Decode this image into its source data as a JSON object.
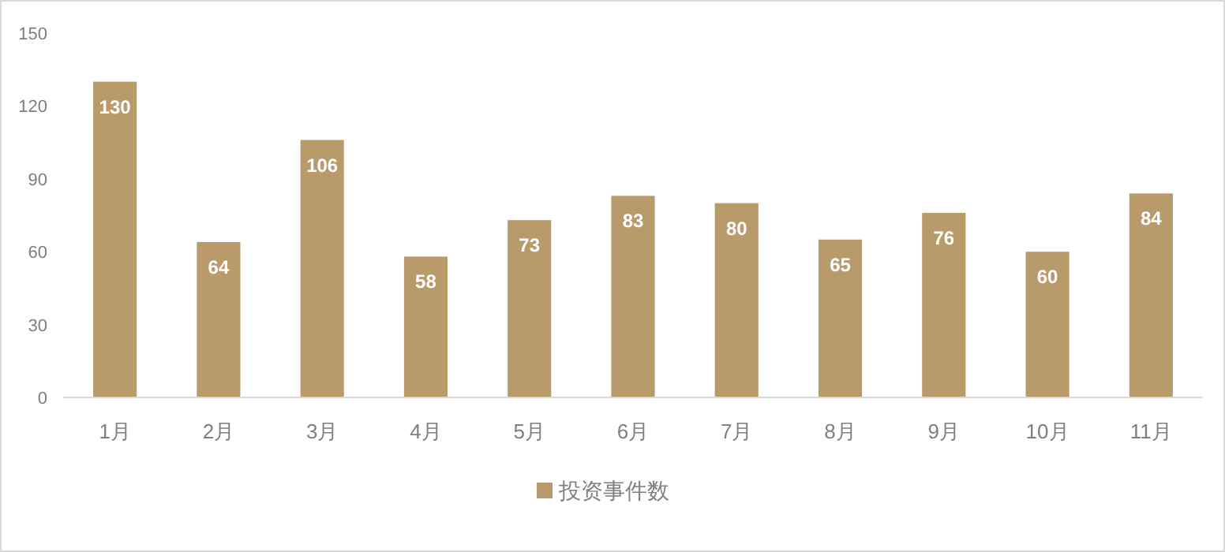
{
  "chart_data": {
    "type": "bar",
    "categories": [
      "1月",
      "2月",
      "3月",
      "4月",
      "5月",
      "6月",
      "7月",
      "8月",
      "9月",
      "10月",
      "11月"
    ],
    "series": [
      {
        "name": "投资事件数",
        "color": "#b99a6b",
        "values": [
          130,
          64,
          106,
          58,
          73,
          83,
          80,
          65,
          76,
          60,
          84
        ]
      }
    ],
    "ylim": [
      0,
      150
    ],
    "yticks": [
      0,
      30,
      60,
      90,
      120,
      150
    ],
    "data_labels": true,
    "legend": "bottom",
    "grid": false
  }
}
